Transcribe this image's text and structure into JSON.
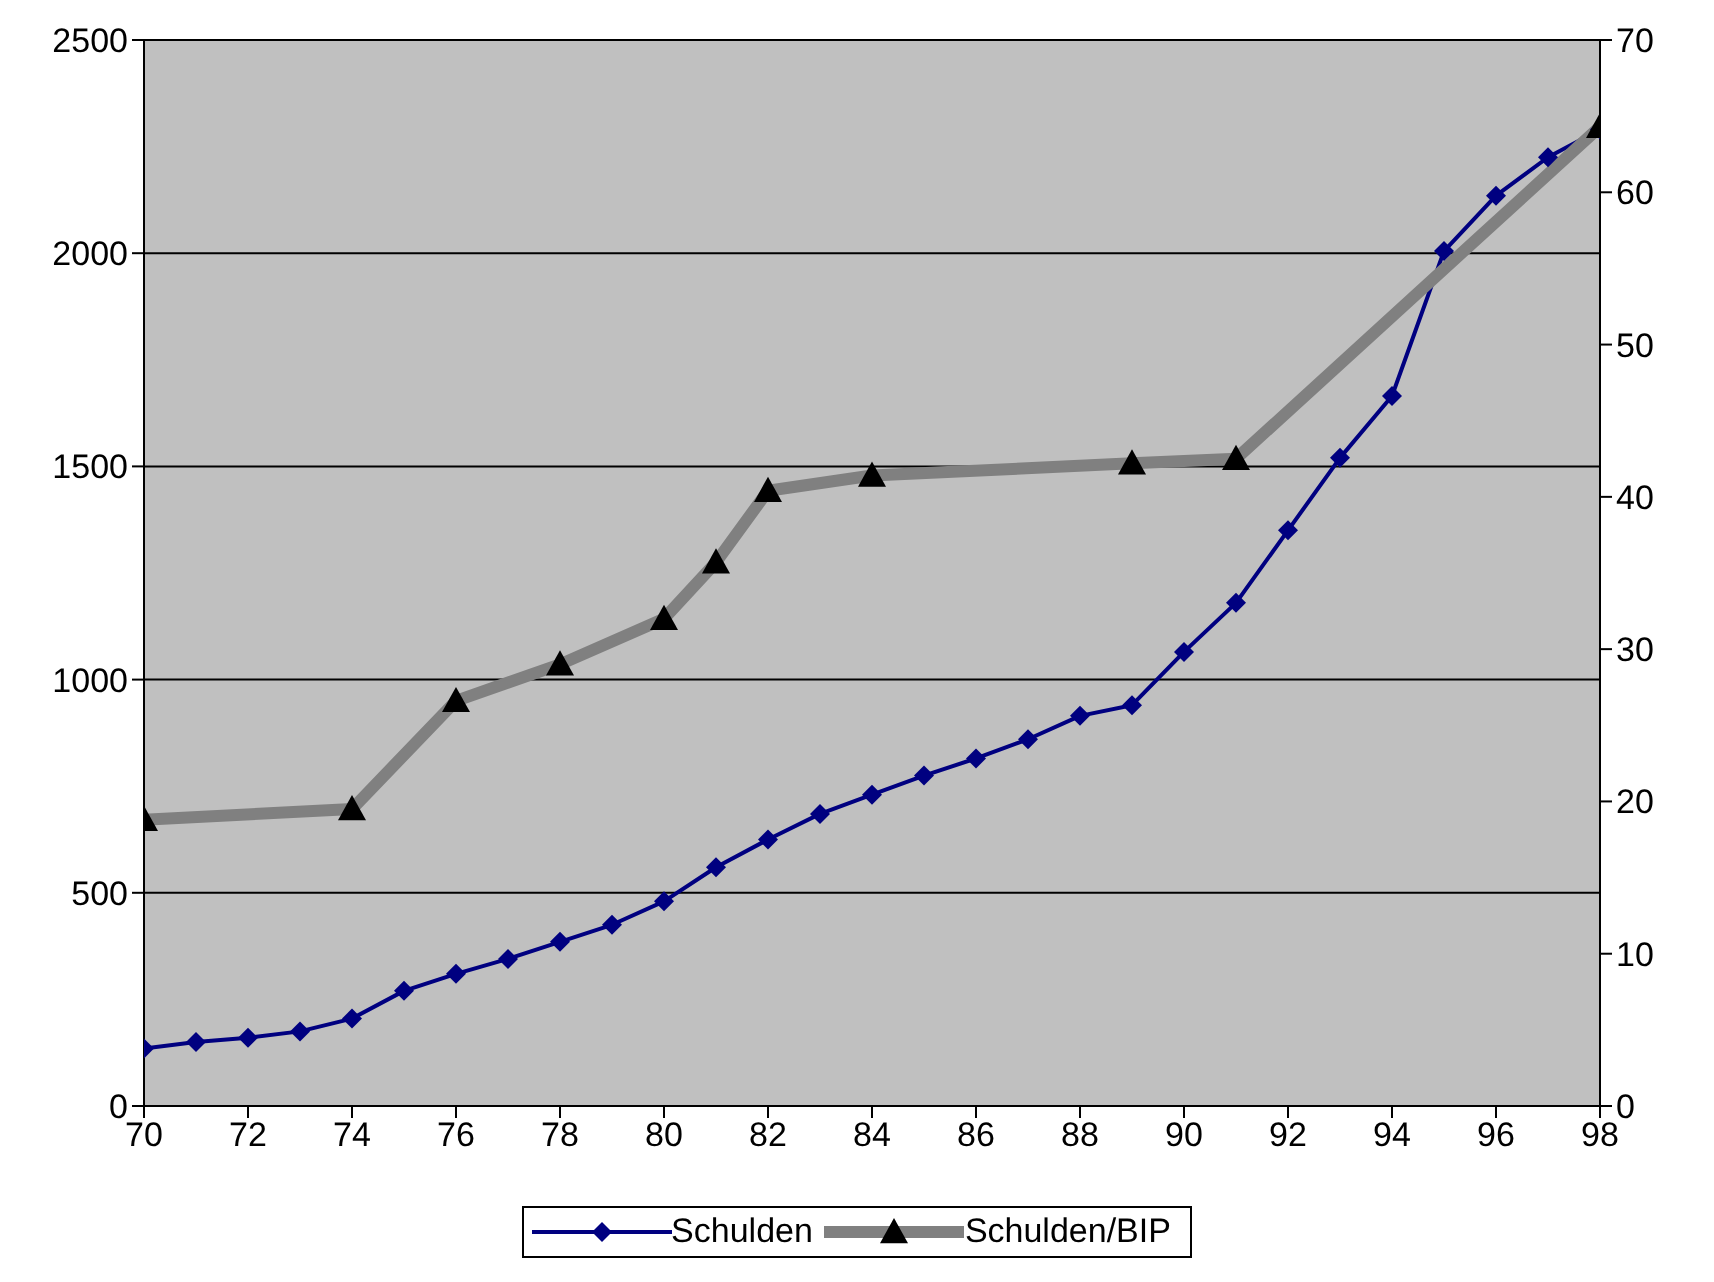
{
  "chart_data": {
    "type": "line",
    "xlim": [
      70,
      98
    ],
    "xticks": [
      70,
      72,
      74,
      76,
      78,
      80,
      82,
      84,
      86,
      88,
      90,
      92,
      94,
      96,
      98
    ],
    "ylim": [
      0,
      2500
    ],
    "yticks": [
      0,
      500,
      1000,
      1500,
      2000,
      2500
    ],
    "y2lim": [
      0,
      70
    ],
    "y2ticks": [
      0,
      10,
      20,
      30,
      40,
      50,
      60,
      70
    ],
    "grid": "y",
    "legend": "bottom",
    "series": [
      {
        "name": "Schulden",
        "color": "#000080",
        "marker": "diamond",
        "x": [
          70,
          71,
          72,
          73,
          74,
          75,
          76,
          77,
          78,
          79,
          80,
          81,
          82,
          83,
          84,
          85,
          86,
          87,
          88,
          89,
          90,
          91,
          92,
          93,
          94,
          95,
          96,
          97,
          98
        ],
        "values": [
          135,
          150,
          160,
          175,
          205,
          270,
          310,
          345,
          385,
          425,
          480,
          560,
          625,
          685,
          730,
          775,
          815,
          860,
          915,
          940,
          1065,
          1180,
          1350,
          1520,
          1665,
          2005,
          2135,
          2225,
          2290
        ]
      },
      {
        "name": "Schulden/BIP",
        "color": "#808080",
        "marker": "triangle",
        "axis": "y2",
        "x": [
          70,
          74,
          76,
          78,
          80,
          81,
          82,
          84,
          89,
          91,
          98
        ],
        "values": [
          18.8,
          19.5,
          26.6,
          29.0,
          32.0,
          35.7,
          40.4,
          41.4,
          42.2,
          42.5,
          64.3
        ]
      }
    ]
  }
}
